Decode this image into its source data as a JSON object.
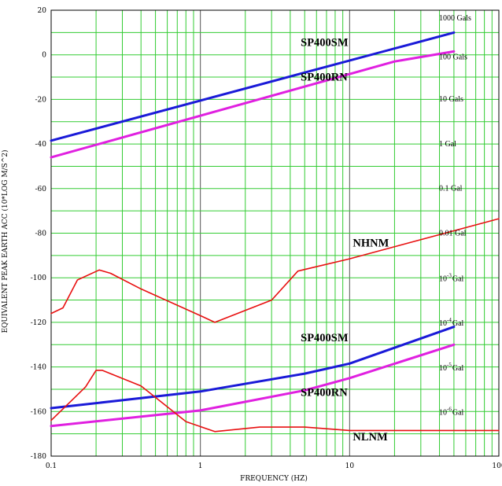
{
  "colors": {
    "grid": "#33cc33",
    "decade": "#555555",
    "sm": "#1a1ad8",
    "rn": "#e020e0",
    "model": "#e81010"
  },
  "chart_data": {
    "type": "line",
    "xlabel": "FREQUENCY (HZ)",
    "ylabel": "EQUIVALENT PEAK EARTH ACC (10*LOG M/S^2)",
    "xscale": "log",
    "xlim": [
      0.1,
      100
    ],
    "ylim": [
      -180,
      20
    ],
    "grid": true,
    "x_ticks": [
      "0.1",
      "1",
      "10",
      "100"
    ],
    "y_ticks": [
      "20",
      "0",
      "-20",
      "-40",
      "-60",
      "-80",
      "-100",
      "-120",
      "-140",
      "-160",
      "-180"
    ],
    "series": [
      {
        "name": "SP400SM",
        "color_key": "sm",
        "x": [
          0.1,
          50
        ],
        "y": [
          -38.5,
          10
        ]
      },
      {
        "name": "SP400RN",
        "color_key": "rn",
        "x": [
          0.1,
          20,
          50
        ],
        "y": [
          -46,
          -3,
          1.5
        ]
      },
      {
        "name": "NHNM",
        "color_key": "model",
        "x": [
          0.1,
          0.12,
          0.15,
          0.21,
          0.25,
          0.4,
          1.0,
          1.25,
          3.0,
          4.5,
          10,
          100
        ],
        "y": [
          -116,
          -113.5,
          -101,
          -96.5,
          -98,
          -105,
          -117,
          -120,
          -110,
          -97,
          -91.5,
          -73.5
        ]
      },
      {
        "name": "SP400SM",
        "color_key": "sm",
        "x": [
          0.1,
          1,
          5,
          10,
          50
        ],
        "y": [
          -158.5,
          -151,
          -143,
          -138.5,
          -122
        ]
      },
      {
        "name": "SP400RN",
        "color_key": "rn",
        "x": [
          0.1,
          1,
          5,
          10,
          50
        ],
        "y": [
          -166.5,
          -159.5,
          -150.5,
          -145,
          -130
        ]
      },
      {
        "name": "NLNM",
        "color_key": "model",
        "x": [
          0.1,
          0.17,
          0.2,
          0.22,
          0.4,
          0.8,
          1.25,
          2.5,
          5,
          10,
          100
        ],
        "y": [
          -164,
          -149,
          -141.5,
          -141.5,
          -148.5,
          -164.5,
          -169,
          -167,
          -167,
          -168.5,
          -168.5
        ]
      }
    ],
    "annotations": [
      {
        "text": "SP400SM",
        "x": 4.7,
        "y": 4
      },
      {
        "text": "SP400RN",
        "x": 4.7,
        "y": -11.5
      },
      {
        "text": "NHNM",
        "x": 10.5,
        "y": -86
      },
      {
        "text": "SP400SM",
        "x": 4.7,
        "y": -128.5
      },
      {
        "text": "SP400RN",
        "x": 4.7,
        "y": -153
      },
      {
        "text": "NLNM",
        "x": 10.5,
        "y": -173
      }
    ],
    "gal_scale": [
      {
        "base": "1000 Gals",
        "exp": "",
        "suffix": "",
        "y": 15.5
      },
      {
        "base": "100 Gals",
        "exp": "",
        "suffix": "",
        "y": -2
      },
      {
        "base": "10 Gals",
        "exp": "",
        "suffix": "",
        "y": -21
      },
      {
        "base": "1 Gal",
        "exp": "",
        "suffix": "",
        "y": -41
      },
      {
        "base": "0.1 Gal",
        "exp": "",
        "suffix": "",
        "y": -61
      },
      {
        "base": "0.01 Gal",
        "exp": "",
        "suffix": "",
        "y": -81
      },
      {
        "base": "10",
        "exp": "-3",
        "suffix": "Gal",
        "y": -101.5
      },
      {
        "base": "10",
        "exp": "-4",
        "suffix": "Gal",
        "y": -121.5
      },
      {
        "base": "10",
        "exp": "-5",
        "suffix": "Gal",
        "y": -141.5
      },
      {
        "base": "10",
        "exp": "-6",
        "suffix": "Gal",
        "y": -161.5
      }
    ]
  }
}
